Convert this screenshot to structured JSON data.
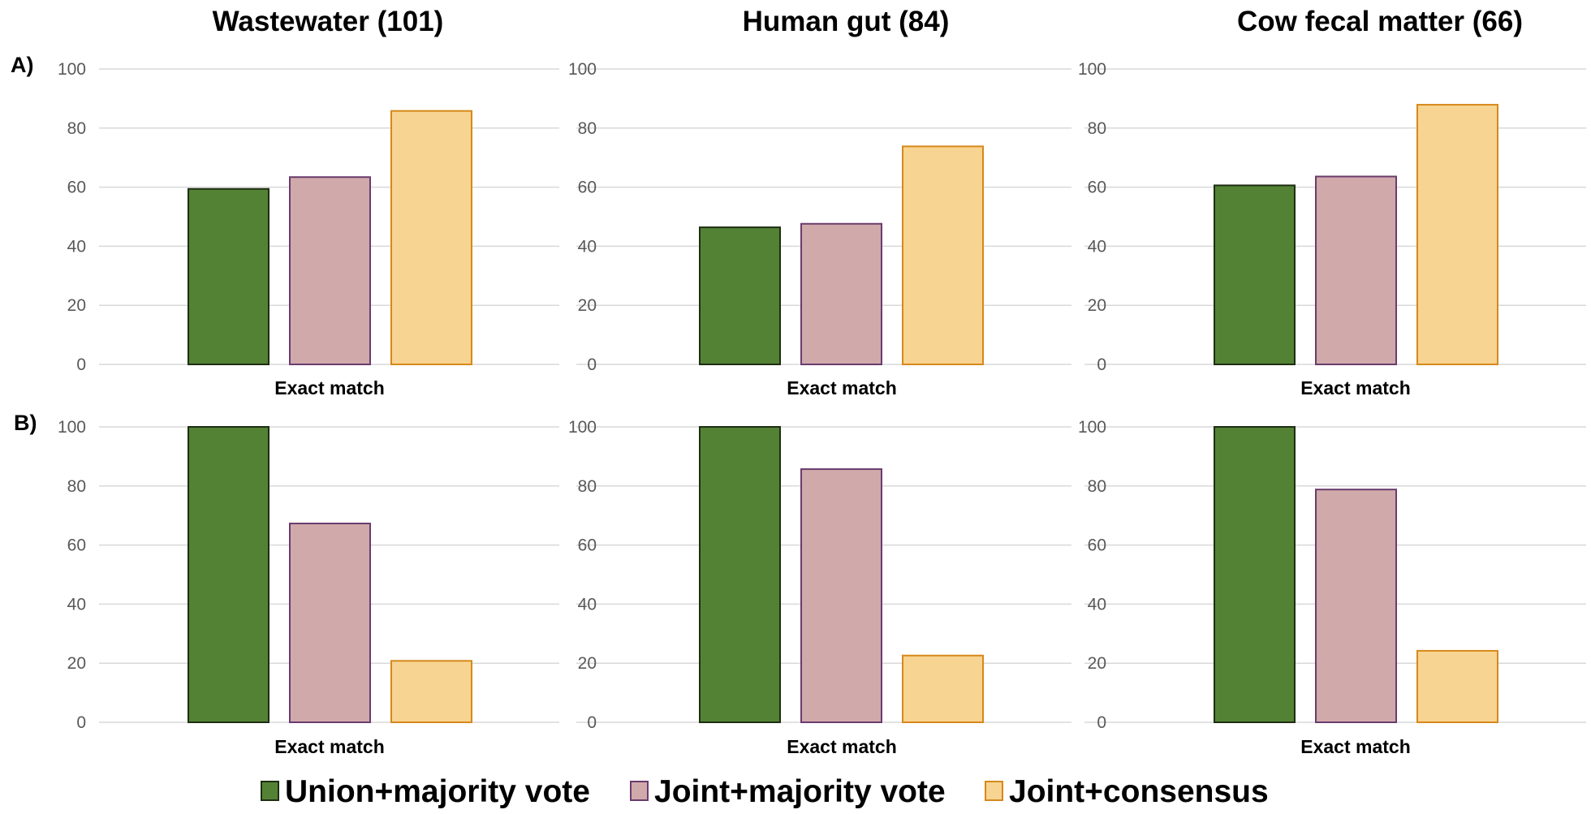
{
  "chart_data": {
    "type": "bar",
    "ylim": [
      0,
      100
    ],
    "yticks": [
      0,
      20,
      40,
      60,
      80,
      100
    ],
    "grid": true,
    "legend_position": "bottom",
    "column_titles": [
      "Wastewater (101)",
      "Human gut (84)",
      "Cow fecal matter (66)"
    ],
    "row_labels": [
      "A)",
      "B)"
    ],
    "category": "Exact match",
    "series": [
      {
        "name": "Union+majority vote",
        "color": "#548235",
        "border": "#1e2e12"
      },
      {
        "name": "Joint+majority vote",
        "color": "#d0a9aa",
        "border": "#6a3c6e"
      },
      {
        "name": "Joint+consensus",
        "color": "#f7d492",
        "border": "#d6891a"
      }
    ],
    "panels": [
      {
        "row": "A)",
        "column": "Wastewater (101)",
        "xlabel": "Exact match",
        "values": [
          59.4,
          63.4,
          85.8
        ]
      },
      {
        "row": "A)",
        "column": "Human gut (84)",
        "xlabel": "Exact match",
        "values": [
          46.4,
          47.6,
          73.8
        ]
      },
      {
        "row": "A)",
        "column": "Cow fecal matter (66)",
        "xlabel": "Exact match",
        "values": [
          60.6,
          63.6,
          87.9
        ]
      },
      {
        "row": "B)",
        "column": "Wastewater (101)",
        "xlabel": "Exact match",
        "values": [
          100,
          67.3,
          20.8
        ]
      },
      {
        "row": "B)",
        "column": "Human gut (84)",
        "xlabel": "Exact match",
        "values": [
          100,
          85.7,
          22.6
        ]
      },
      {
        "row": "B)",
        "column": "Cow fecal matter (66)",
        "xlabel": "Exact match",
        "values": [
          100,
          78.8,
          24.2
        ]
      }
    ]
  }
}
